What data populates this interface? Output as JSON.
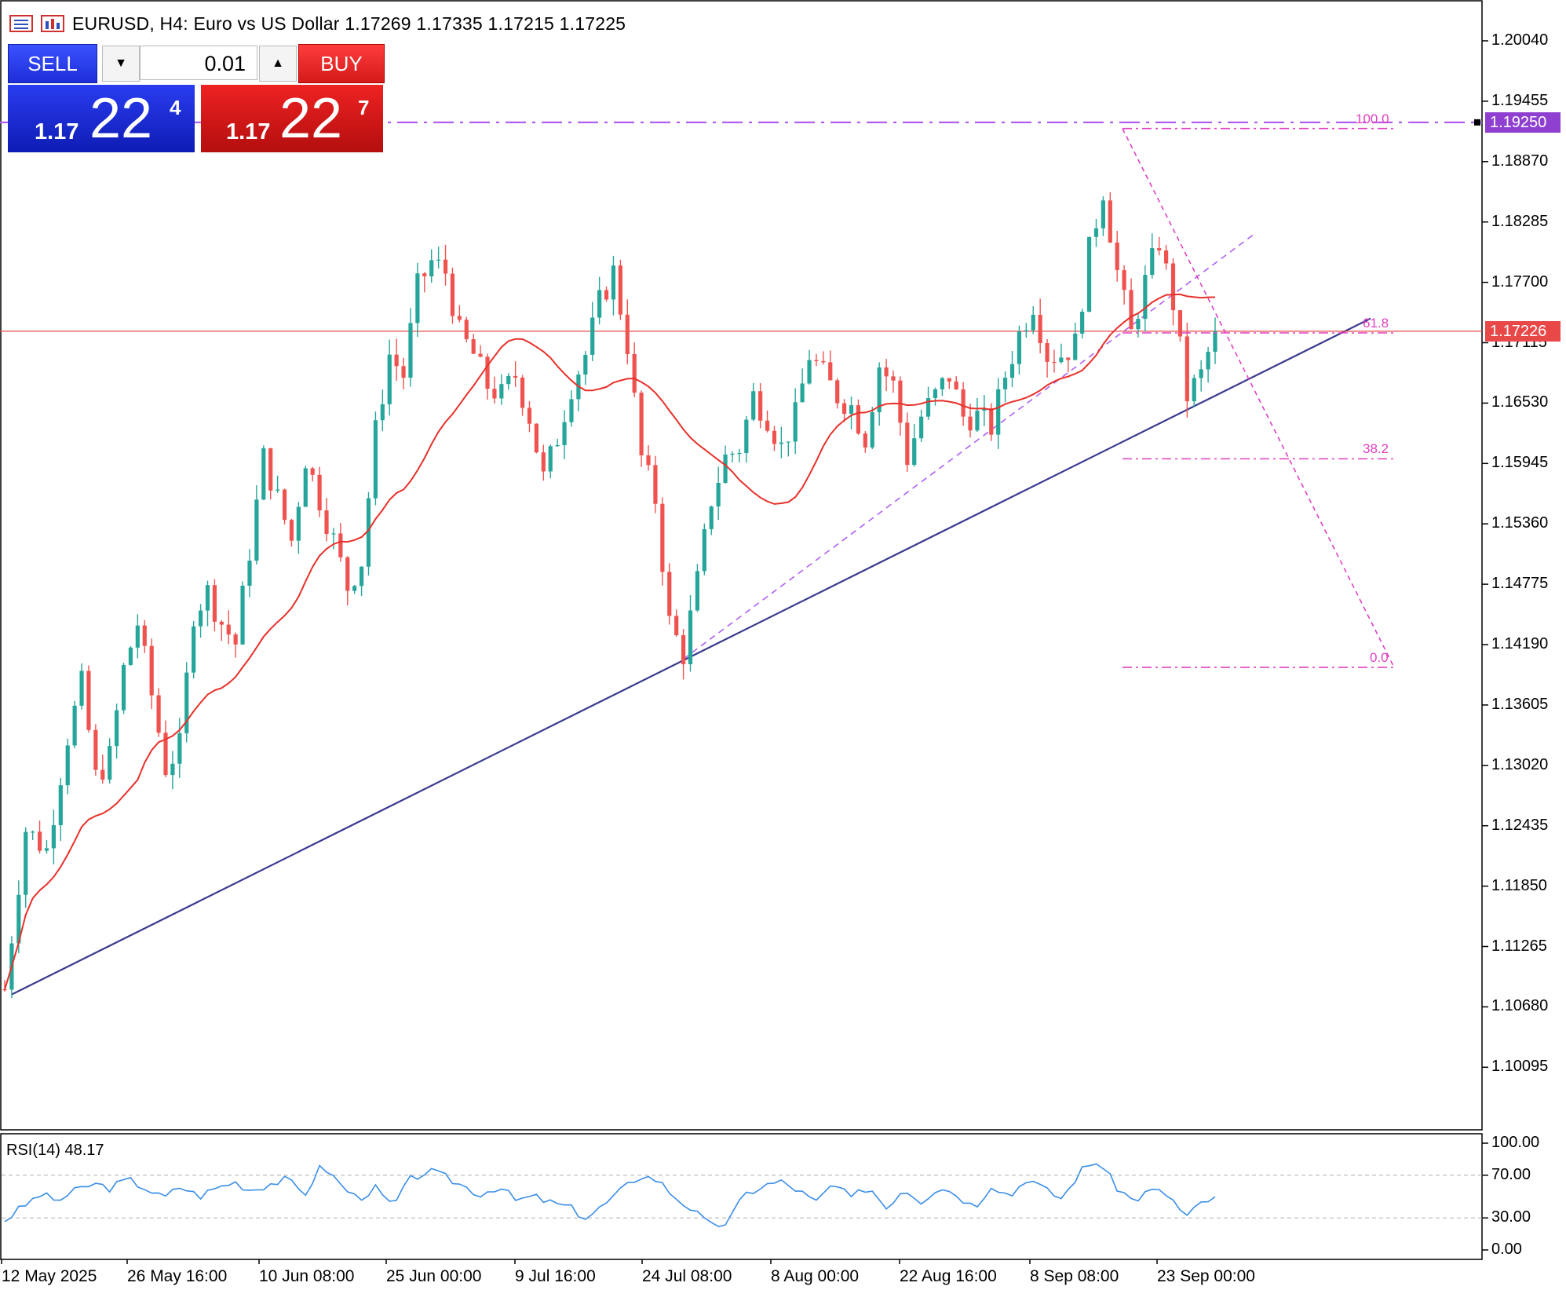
{
  "header": {
    "symbol_line": "EURUSD, H4:  Euro vs US Dollar  1.17269 1.17335 1.17215 1.17225"
  },
  "trade_panel": {
    "sell_label": "SELL",
    "buy_label": "BUY",
    "lot_value": "0.01",
    "lot_down_icon": "caret-down-icon",
    "lot_up_icon": "caret-up-icon",
    "sell_price_small": "1.17",
    "sell_price_big": "22",
    "sell_price_sup": "4",
    "buy_price_small": "1.17",
    "buy_price_big": "22",
    "buy_price_sup": "7"
  },
  "price_axis": {
    "labels": [
      "1.20040",
      "1.19455",
      "1.18870",
      "1.18285",
      "1.17700",
      "1.17115",
      "1.16530",
      "1.15945",
      "1.15360",
      "1.14775",
      "1.14190",
      "1.13605",
      "1.13020",
      "1.12435",
      "1.11850",
      "1.11265",
      "1.10680",
      "1.10095"
    ],
    "tag_level": "1.19250",
    "tag_current": "1.17226"
  },
  "rsi": {
    "title": "RSI(14) 48.17",
    "axis_labels": [
      "100.00",
      "70.00",
      "30.00",
      "0.00"
    ],
    "levels": [
      70,
      30
    ]
  },
  "time_axis": {
    "labels": [
      "12 May 2025",
      "26 May 16:00",
      "10 Jun 08:00",
      "25 Jun 00:00",
      "9 Jul 16:00",
      "24 Jul 08:00",
      "8 Aug 00:00",
      "22 Aug 16:00",
      "8 Sep 08:00",
      "23 Sep 00:00"
    ]
  },
  "fibonacci": {
    "levels": [
      {
        "label": "100.0",
        "price": 1.1919
      },
      {
        "label": "61.8",
        "price": 1.1721
      },
      {
        "label": "38.2",
        "price": 1.1599
      },
      {
        "label": "0.0",
        "price": 1.1397
      }
    ]
  },
  "colors": {
    "bull": "#26a69a",
    "bear": "#ef5350",
    "ma": "#e8302a",
    "trendline": "#3a3a90",
    "fib": "#e040c0",
    "channel": "#b060f0",
    "rsi_line": "#3a8ee8",
    "tag_level_bg": "#9040d0",
    "tag_current_bg": "#e84848"
  },
  "chart_data": {
    "type": "candlestick",
    "symbol": "EURUSD",
    "timeframe": "H4",
    "ylim": [
      1.096,
      1.206
    ],
    "last_price": 1.17226,
    "price_path": [
      [
        0,
        1.1085
      ],
      [
        3,
        1.124
      ],
      [
        6,
        1.122
      ],
      [
        9,
        1.133
      ],
      [
        11,
        1.138
      ],
      [
        13,
        1.129
      ],
      [
        15,
        1.131
      ],
      [
        17,
        1.1395
      ],
      [
        19,
        1.144
      ],
      [
        21,
        1.137
      ],
      [
        23,
        1.13
      ],
      [
        25,
        1.132
      ],
      [
        27,
        1.145
      ],
      [
        29,
        1.147
      ],
      [
        31,
        1.144
      ],
      [
        33,
        1.142
      ],
      [
        35,
        1.151
      ],
      [
        37,
        1.16
      ],
      [
        39,
        1.156
      ],
      [
        41,
        1.152
      ],
      [
        43,
        1.16
      ],
      [
        45,
        1.156
      ],
      [
        47,
        1.152
      ],
      [
        49,
        1.1475
      ],
      [
        51,
        1.15
      ],
      [
        53,
        1.1625
      ],
      [
        55,
        1.17
      ],
      [
        57,
        1.168
      ],
      [
        59,
        1.1765
      ],
      [
        61,
        1.179
      ],
      [
        63,
        1.178
      ],
      [
        65,
        1.172
      ],
      [
        67,
        1.17
      ],
      [
        69,
        1.167
      ],
      [
        71,
        1.166
      ],
      [
        73,
        1.168
      ],
      [
        75,
        1.164
      ],
      [
        77,
        1.158
      ],
      [
        79,
        1.162
      ],
      [
        81,
        1.167
      ],
      [
        83,
        1.17
      ],
      [
        85,
        1.175
      ],
      [
        87,
        1.178
      ],
      [
        89,
        1.171
      ],
      [
        91,
        1.16
      ],
      [
        93,
        1.156
      ],
      [
        95,
        1.144
      ],
      [
        97,
        1.141
      ],
      [
        99,
        1.148
      ],
      [
        101,
        1.156
      ],
      [
        103,
        1.16
      ],
      [
        105,
        1.161
      ],
      [
        107,
        1.166
      ],
      [
        109,
        1.164
      ],
      [
        111,
        1.161
      ],
      [
        113,
        1.164
      ],
      [
        115,
        1.17
      ],
      [
        117,
        1.168
      ],
      [
        119,
        1.166
      ],
      [
        121,
        1.165
      ],
      [
        123,
        1.162
      ],
      [
        125,
        1.169
      ],
      [
        127,
        1.167
      ],
      [
        129,
        1.16
      ],
      [
        131,
        1.164
      ],
      [
        133,
        1.166
      ],
      [
        135,
        1.168
      ],
      [
        137,
        1.164
      ],
      [
        139,
        1.164
      ],
      [
        141,
        1.163
      ],
      [
        143,
        1.168
      ],
      [
        145,
        1.172
      ],
      [
        147,
        1.175
      ],
      [
        149,
        1.17
      ],
      [
        151,
        1.17
      ],
      [
        153,
        1.171
      ],
      [
        155,
        1.18
      ],
      [
        157,
        1.186
      ],
      [
        159,
        1.178
      ],
      [
        161,
        1.172
      ],
      [
        163,
        1.177
      ],
      [
        165,
        1.181
      ],
      [
        167,
        1.175
      ],
      [
        169,
        1.166
      ],
      [
        171,
        1.168
      ],
      [
        173,
        1.1722
      ]
    ],
    "rsi_path": [
      [
        0,
        28
      ],
      [
        2,
        40
      ],
      [
        4,
        52
      ],
      [
        6,
        46
      ],
      [
        8,
        55
      ],
      [
        10,
        62
      ],
      [
        12,
        58
      ],
      [
        14,
        66
      ],
      [
        16,
        58
      ],
      [
        18,
        48
      ],
      [
        20,
        60
      ],
      [
        22,
        50
      ],
      [
        24,
        58
      ],
      [
        26,
        64
      ],
      [
        28,
        56
      ],
      [
        30,
        62
      ],
      [
        32,
        66
      ],
      [
        34,
        52
      ],
      [
        36,
        80
      ],
      [
        38,
        62
      ],
      [
        40,
        48
      ],
      [
        42,
        58
      ],
      [
        44,
        40
      ],
      [
        46,
        66
      ],
      [
        48,
        74
      ],
      [
        50,
        68
      ],
      [
        52,
        60
      ],
      [
        54,
        52
      ],
      [
        56,
        60
      ],
      [
        58,
        46
      ],
      [
        60,
        50
      ],
      [
        62,
        44
      ],
      [
        64,
        40
      ],
      [
        66,
        30
      ],
      [
        68,
        42
      ],
      [
        70,
        56
      ],
      [
        72,
        70
      ],
      [
        74,
        66
      ],
      [
        76,
        50
      ],
      [
        78,
        38
      ],
      [
        80,
        22
      ],
      [
        82,
        26
      ],
      [
        84,
        52
      ],
      [
        86,
        60
      ],
      [
        88,
        64
      ],
      [
        90,
        56
      ],
      [
        92,
        44
      ],
      [
        94,
        62
      ],
      [
        96,
        48
      ],
      [
        98,
        60
      ],
      [
        100,
        40
      ],
      [
        102,
        58
      ],
      [
        104,
        46
      ],
      [
        106,
        60
      ],
      [
        108,
        52
      ],
      [
        110,
        40
      ],
      [
        112,
        62
      ],
      [
        114,
        50
      ],
      [
        116,
        68
      ],
      [
        118,
        56
      ],
      [
        120,
        48
      ],
      [
        122,
        74
      ],
      [
        124,
        84
      ],
      [
        126,
        60
      ],
      [
        128,
        46
      ],
      [
        130,
        56
      ],
      [
        132,
        52
      ],
      [
        134,
        30
      ],
      [
        136,
        46
      ],
      [
        138,
        48
      ]
    ]
  }
}
